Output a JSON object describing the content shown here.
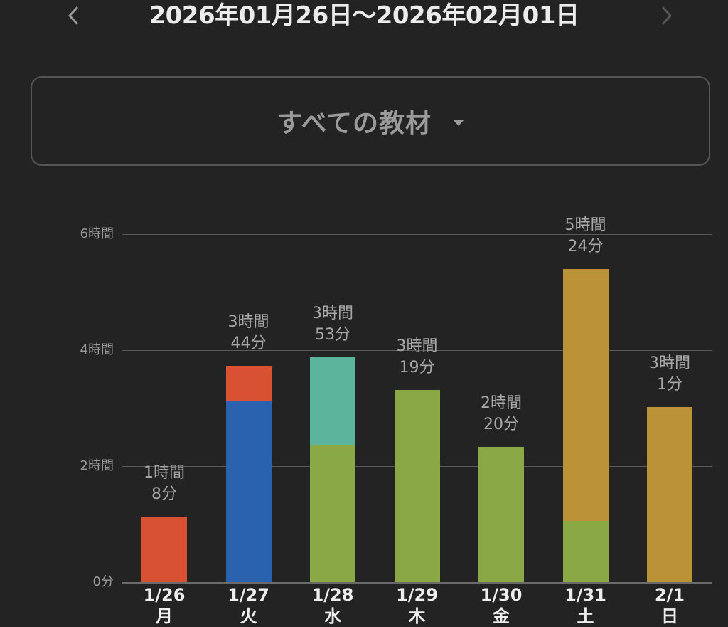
{
  "header": {
    "date_range": "2026年01月26日〜2026年02月01日",
    "prev_icon": "chevron-left-icon",
    "next_icon": "chevron-right-icon"
  },
  "selector": {
    "label": "すべての教材",
    "caret_icon": "caret-down-icon"
  },
  "chart_data": {
    "type": "bar",
    "stacked": true,
    "title": "",
    "xlabel": "",
    "ylabel": "",
    "ylim": [
      0,
      360
    ],
    "y_unit": "minutes",
    "grid": true,
    "legend": null,
    "y_ticks": [
      {
        "value": 0,
        "label": "0分"
      },
      {
        "value": 120,
        "label": "2時間"
      },
      {
        "value": 240,
        "label": "4時間"
      },
      {
        "value": 360,
        "label": "6時間"
      }
    ],
    "categories": [
      "1/26",
      "1/27",
      "1/28",
      "1/29",
      "1/30",
      "1/31",
      "2/1"
    ],
    "weekdays": [
      "月",
      "火",
      "水",
      "木",
      "金",
      "土",
      "日"
    ],
    "totals_minutes": [
      68,
      224,
      233,
      199,
      140,
      324,
      181
    ],
    "total_labels": [
      [
        "1時間",
        "8分"
      ],
      [
        "3時間",
        "44分"
      ],
      [
        "3時間",
        "53分"
      ],
      [
        "3時間",
        "19分"
      ],
      [
        "2時間",
        "20分"
      ],
      [
        "5時間",
        "24分"
      ],
      [
        "3時間",
        "1分"
      ]
    ],
    "series": [
      {
        "name": "green",
        "color": "#8aa845",
        "values": [
          0,
          0,
          142,
          199,
          140,
          63,
          0
        ]
      },
      {
        "name": "blue",
        "color": "#2b62ad",
        "values": [
          0,
          188,
          0,
          0,
          0,
          0,
          0
        ]
      },
      {
        "name": "red",
        "color": "#d85133",
        "values": [
          68,
          36,
          0,
          0,
          0,
          0,
          0
        ]
      },
      {
        "name": "teal",
        "color": "#5bb59c",
        "values": [
          0,
          0,
          91,
          0,
          0,
          0,
          0
        ]
      },
      {
        "name": "gold",
        "color": "#bb9235",
        "values": [
          0,
          0,
          0,
          0,
          0,
          261,
          181
        ]
      }
    ]
  }
}
